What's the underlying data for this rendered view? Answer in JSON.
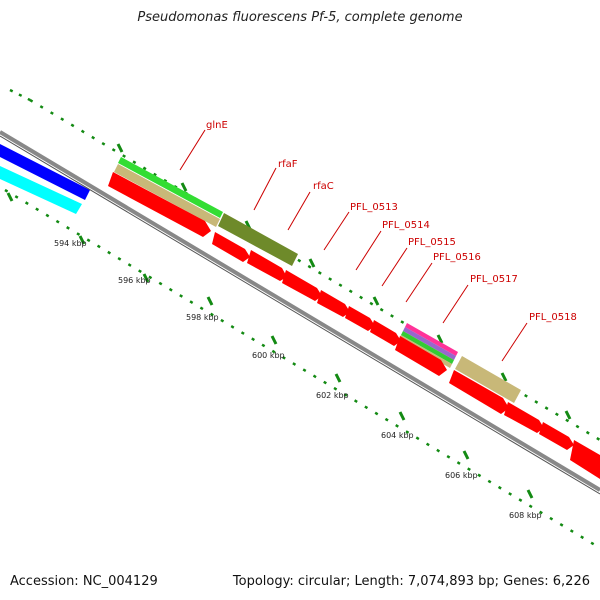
{
  "title": "Pseudomonas fluorescens Pf-5, complete genome",
  "accession": "Accession: NC_004129",
  "topology": "Topology: circular; Length: 7,074,893 bp; Genes: 6,226",
  "scale_labels": [
    "594 kbp",
    "596 kbp",
    "598 kbp",
    "600 kbp",
    "602 kbp",
    "604 kbp",
    "606 kbp",
    "608 kbp"
  ],
  "gene_labels": [
    "glnE",
    "rfaF",
    "rfaC",
    "PFL_0513",
    "PFL_0514",
    "PFL_0515",
    "PFL_0516",
    "PFL_0517",
    "PFL_0518"
  ],
  "colors": {
    "cds": "#ff0000",
    "cog_blue": "#0000ff",
    "cog_cyan": "#00ffff",
    "cog_green": "#33dd33",
    "cog_tan": "#c8b878",
    "cog_olive": "#6e8a2a",
    "backbone": "#888888",
    "tick": "#138a13",
    "label": "#cc0000"
  }
}
